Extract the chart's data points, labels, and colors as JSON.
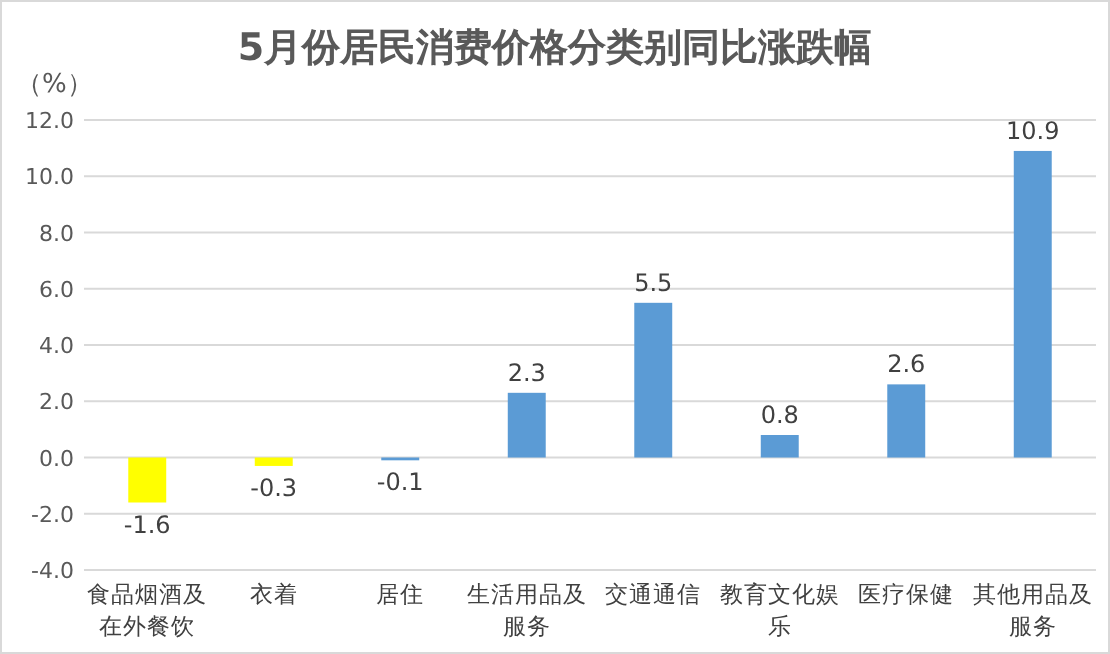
{
  "chart_data": {
    "type": "bar",
    "title": "5月份居民消费价格分类别同比涨跌幅",
    "ylabel": "（%）",
    "categories": [
      "食品烟酒及在外餐饮",
      "衣着",
      "居住",
      "生活用品及服务",
      "交通通信",
      "教育文化娱乐",
      "医疗保健",
      "其他用品及服务"
    ],
    "values": [
      -1.6,
      -0.3,
      -0.1,
      2.3,
      5.5,
      0.8,
      2.6,
      10.9
    ],
    "colors": [
      "#ffff00",
      "#ffff00",
      "#5b9bd5",
      "#5b9bd5",
      "#5b9bd5",
      "#5b9bd5",
      "#5b9bd5",
      "#5b9bd5"
    ],
    "ylim": [
      -4,
      12
    ],
    "yticks": [
      {
        "value": -4,
        "label": "-4.0"
      },
      {
        "value": -2,
        "label": "-2.0"
      },
      {
        "value": 0,
        "label": "0.0"
      },
      {
        "value": 2,
        "label": "2.0"
      },
      {
        "value": 4,
        "label": "4.0"
      },
      {
        "value": 6,
        "label": "6.0"
      },
      {
        "value": 8,
        "label": "8.0"
      },
      {
        "value": 10,
        "label": "10.0"
      },
      {
        "value": 12,
        "label": "12.0"
      }
    ],
    "grid": "y",
    "data_labels": true
  }
}
